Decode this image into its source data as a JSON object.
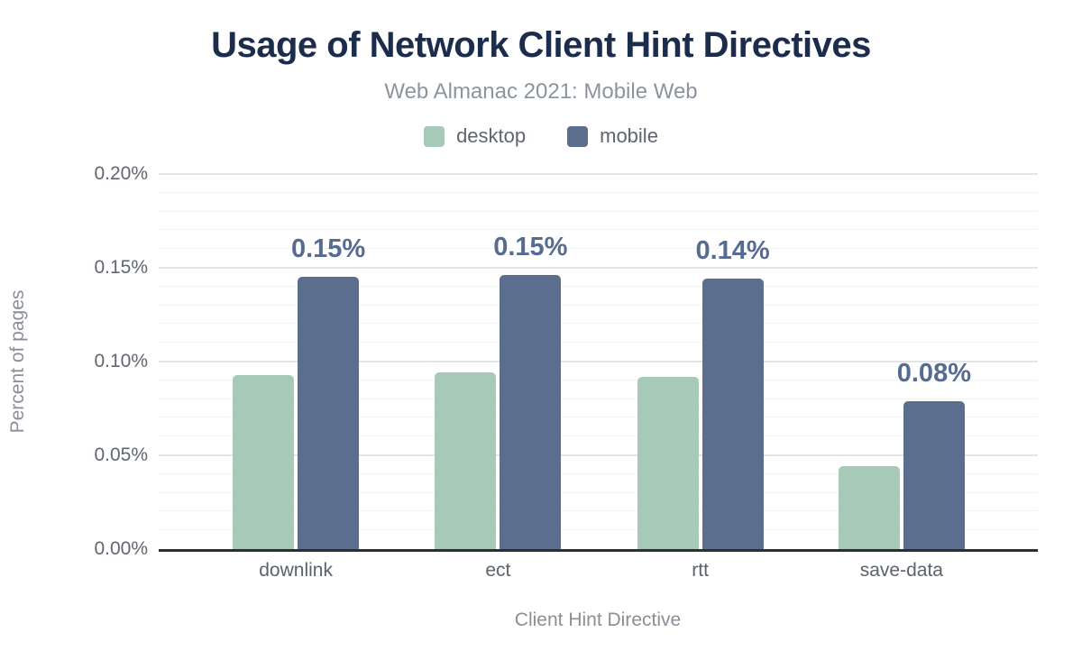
{
  "title": "Usage of Network Client Hint Directives",
  "subtitle": "Web Almanac 2021: Mobile Web",
  "legend": [
    {
      "label": "desktop",
      "color": "#a7c9b7"
    },
    {
      "label": "mobile",
      "color": "#5c6e8d"
    }
  ],
  "axes": {
    "y_title": "Percent of pages",
    "x_title": "Client Hint Directive"
  },
  "colors": {
    "title": "#1c2c4d",
    "subtitle": "#8d949e",
    "desktop_bar": "#a7c9b7",
    "mobile_bar": "#5c6e8d",
    "data_label": "#566b91",
    "axis_text": "#606671",
    "major_grid": "#e2e4e7",
    "minor_grid": "#f3f4f6",
    "baseline": "#2e2f31"
  },
  "chart_data": {
    "type": "bar",
    "title": "Usage of Network Client Hint Directives",
    "subtitle": "Web Almanac 2021: Mobile Web",
    "categories": [
      "downlink",
      "ect",
      "rtt",
      "save-data"
    ],
    "series": [
      {
        "name": "desktop",
        "color": "#a7c9b7",
        "values": [
          0.093,
          0.094,
          0.092,
          0.044
        ]
      },
      {
        "name": "mobile",
        "color": "#5c6e8d",
        "values": [
          0.145,
          0.146,
          0.144,
          0.079
        ],
        "data_labels": [
          "0.15%",
          "0.15%",
          "0.14%",
          "0.08%"
        ]
      }
    ],
    "values_unit": "percent of pages",
    "xlabel": "Client Hint Directive",
    "ylabel": "Percent of pages",
    "ylim": [
      0,
      0.2
    ],
    "yticks": [
      "0.00%",
      "0.05%",
      "0.10%",
      "0.15%",
      "0.20%"
    ],
    "grid": "horizontal, major every 0.05%, minor every 0.01%",
    "legend_position": "top center"
  }
}
